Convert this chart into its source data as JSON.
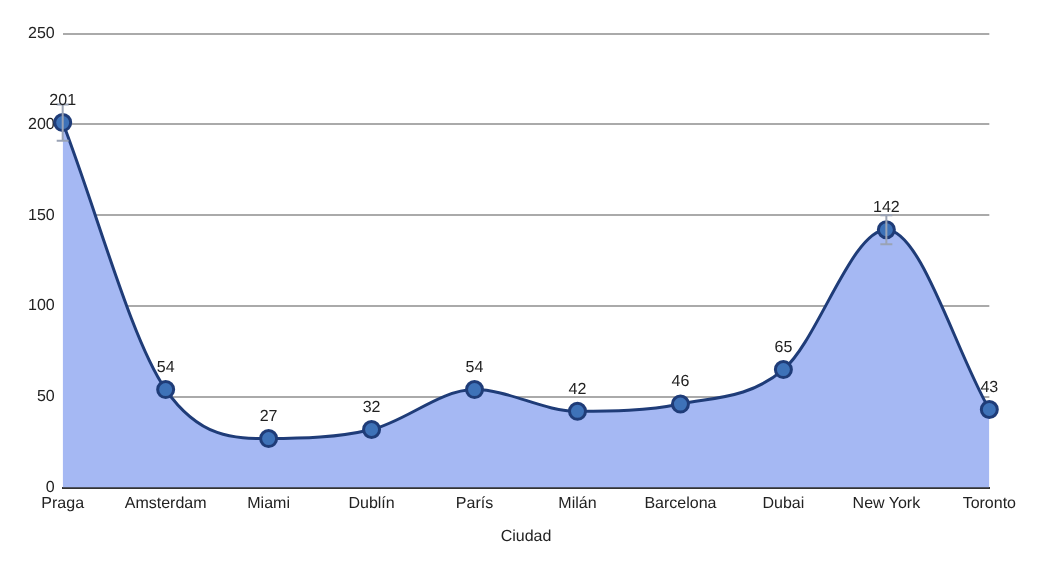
{
  "chart_data": {
    "type": "area",
    "xlabel": "Ciudad",
    "categories": [
      "Praga",
      "Amsterdam",
      "Miami",
      "Dublín",
      "París",
      "Milán",
      "Barcelona",
      "Dubai",
      "New York",
      "Toronto"
    ],
    "series": [
      {
        "color": "#1f3c78",
        "values": [
          201,
          54,
          27,
          32,
          54,
          42,
          46,
          65,
          142,
          43
        ],
        "errors": [
          10,
          null,
          null,
          null,
          null,
          null,
          null,
          null,
          8,
          null
        ]
      }
    ],
    "ylim": [
      0,
      250
    ],
    "yticks": [
      0,
      50,
      100,
      150,
      200,
      250
    ],
    "grid": "y",
    "data_labels": true,
    "marker": "circle",
    "legend": false
  }
}
